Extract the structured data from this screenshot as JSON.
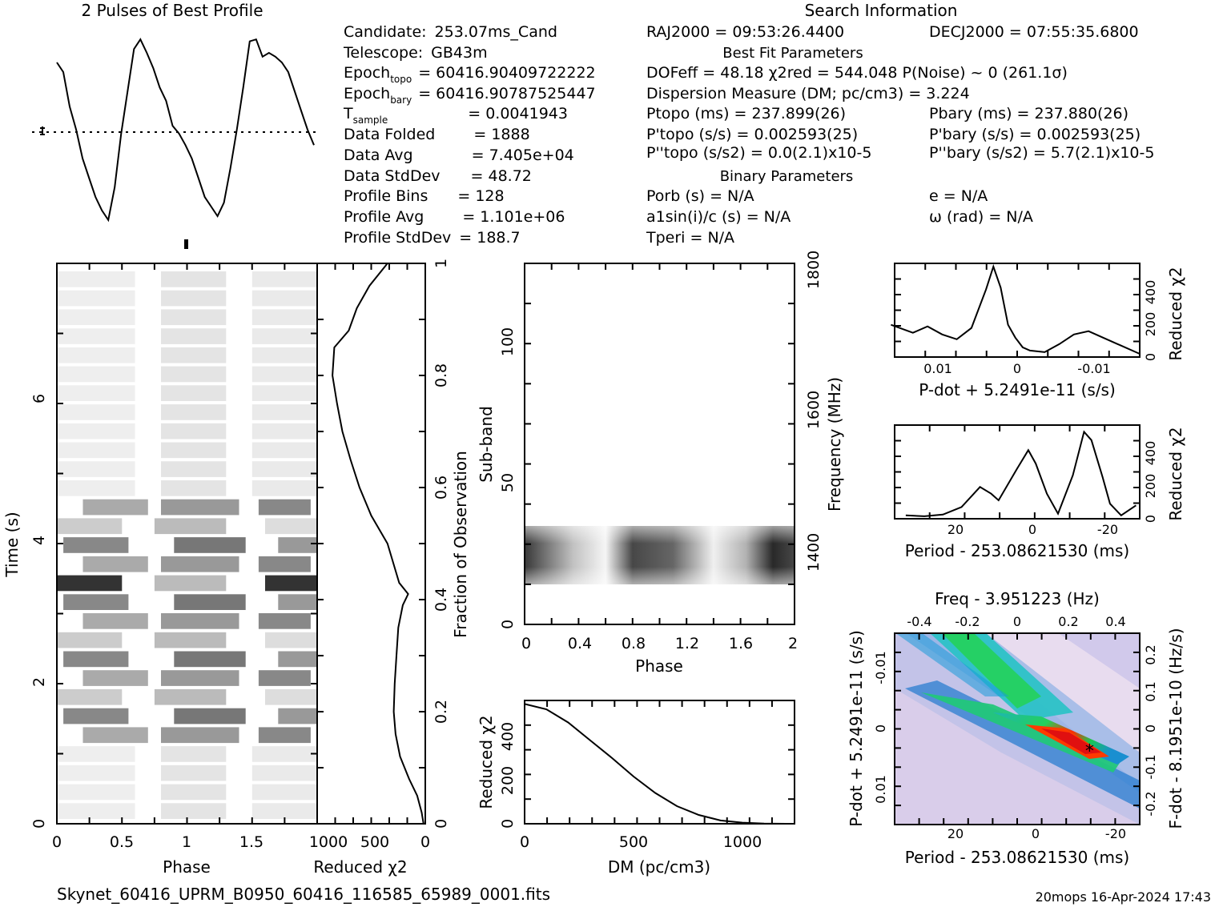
{
  "header": {
    "profile_title": "2 Pulses of Best Profile",
    "search_title": "Search Information",
    "best_fit_title": "Best Fit Parameters",
    "binary_title": "Binary Parameters"
  },
  "info_left": [
    {
      "label": "Candidate:",
      "value": "253.07ms_Cand"
    },
    {
      "label": "Telescope:",
      "value": "GB43m"
    },
    {
      "label": "Epoch",
      "sub": "topo",
      "value": "= 60416.90409722222"
    },
    {
      "label": "Epoch",
      "sub": "bary",
      "value": "= 60416.90787525447"
    },
    {
      "label": "T",
      "sub": "sample",
      "value": "=   0.0041943"
    },
    {
      "label": "Data Folded",
      "value": "=   1888"
    },
    {
      "label": "Data Avg",
      "value": "=   7.405e+04"
    },
    {
      "label": "Data StdDev",
      "value": "=   48.72"
    },
    {
      "label": "Profile Bins",
      "value": "=   128"
    },
    {
      "label": "Profile Avg",
      "value": "=   1.101e+06"
    },
    {
      "label": "Profile StdDev",
      "value": "=   188.7"
    }
  ],
  "search": {
    "ra": "RAJ2000 = 09:53:26.4400",
    "dec": "DECJ2000 = 07:55:35.6800",
    "dof": "DOFeff = 48.18  χ2red = 544.048   P(Noise) ~ 0    (261.1σ)",
    "dm": "Dispersion Measure (DM; pc/cm3) = 3.224",
    "p_topo": "Ptopo (ms) =  237.899(26)",
    "p_bary": "Pbary (ms) =  237.880(26)",
    "pd_topo": "P'topo (s/s) =  0.002593(25)",
    "pd_bary": "P'bary (s/s) =  0.002593(25)",
    "pdd_topo": "P''topo (s/s2) = 0.0(2.1)x10-5",
    "pdd_bary": "P''bary (s/s2) =  5.7(2.1)x10-5",
    "porb": "Porb (s) = N/A",
    "e": "e = N/A",
    "a1": "a1sin(i)/c (s) = N/A",
    "omega": "ω (rad) = N/A",
    "tperi": "Tperi = N/A"
  },
  "footer": {
    "filename": "Skynet_60416_UPRM_B0950_60416_116585_65989_0001.fits",
    "stamp": "20mops 16-Apr-2024 17:43"
  },
  "chart_data": [
    {
      "type": "line",
      "title": "2 Pulses of Best Profile",
      "xlabel": "",
      "ylabel": "",
      "x": [
        0,
        0.05,
        0.1,
        0.15,
        0.2,
        0.25,
        0.3,
        0.35,
        0.4,
        0.45,
        0.5,
        0.55,
        0.6,
        0.65,
        0.7,
        0.75,
        0.8,
        0.85,
        0.9,
        0.95,
        1.0,
        1.05,
        1.1,
        1.15,
        1.2,
        1.25,
        1.3,
        1.35,
        1.4,
        1.45,
        1.5,
        1.55,
        1.6,
        1.65,
        1.7,
        1.75,
        1.8,
        1.85,
        1.9,
        1.95,
        2.0
      ],
      "values": [
        0.85,
        0.8,
        0.62,
        0.5,
        0.35,
        0.25,
        0.15,
        0.08,
        0.03,
        0.2,
        0.48,
        0.7,
        0.92,
        0.97,
        0.9,
        0.82,
        0.72,
        0.65,
        0.52,
        0.48,
        0.42,
        0.35,
        0.25,
        0.15,
        0.1,
        0.05,
        0.12,
        0.3,
        0.5,
        0.72,
        0.96,
        0.97,
        0.88,
        0.9,
        0.88,
        0.85,
        0.8,
        0.7,
        0.6,
        0.5,
        0.42
      ],
      "ylim": [
        0,
        1
      ]
    },
    {
      "type": "heatmap",
      "title": "",
      "xlabel": "Phase",
      "ylabel": "Time (s)",
      "xticks": [
        "0",
        "0.5",
        "1",
        "1.5"
      ],
      "yticks": [
        "0",
        "2",
        "4",
        "6"
      ],
      "xlim": [
        0,
        2
      ],
      "ylim": [
        0,
        7.9
      ]
    },
    {
      "type": "line",
      "title": "",
      "xlabel": "Reduced χ2",
      "ylabel": "Fraction of Observation",
      "xticks": [
        "1000",
        "500",
        "0"
      ],
      "yticks": [
        "0",
        "0.2",
        "0.4",
        "0.6",
        "0.8",
        "1"
      ],
      "y": [
        0,
        0.02,
        0.05,
        0.08,
        0.12,
        0.16,
        0.2,
        0.25,
        0.3,
        0.35,
        0.39,
        0.41,
        0.43,
        0.5,
        0.55,
        0.6,
        0.65,
        0.7,
        0.75,
        0.8,
        0.85,
        0.88,
        0.92,
        0.96,
        1.0
      ],
      "values": [
        20,
        40,
        90,
        180,
        280,
        330,
        350,
        340,
        320,
        300,
        250,
        190,
        290,
        420,
        600,
        730,
        830,
        920,
        980,
        1030,
        1010,
        850,
        760,
        620,
        420
      ],
      "xlim": [
        1200,
        0
      ],
      "ylim": [
        0,
        1
      ]
    },
    {
      "type": "heatmap",
      "title": "",
      "xlabel": "Phase",
      "ylabel": "Sub-band",
      "y2label": "Frequency (MHz)",
      "xticks": [
        "0",
        "0.4",
        "0.8",
        "1.2",
        "1.6",
        "2"
      ],
      "yticks": [
        "0",
        "50",
        "100"
      ],
      "y2ticks": [
        "1400",
        "1600",
        "1800"
      ],
      "xlim": [
        0,
        2
      ],
      "ylim": [
        0,
        128
      ]
    },
    {
      "type": "line",
      "title": "",
      "xlabel": "DM (pc/cm3)",
      "ylabel": "Reduced χ2",
      "xticks": [
        "0",
        "500",
        "1000"
      ],
      "yticks": [
        "0",
        "200",
        "400"
      ],
      "x": [
        0,
        100,
        200,
        300,
        400,
        500,
        600,
        700,
        800,
        900,
        1000,
        1100,
        1200
      ],
      "values": [
        544,
        520,
        460,
        380,
        300,
        215,
        140,
        80,
        40,
        15,
        5,
        1,
        0
      ],
      "xlim": [
        0,
        1240
      ],
      "ylim": [
        0,
        560
      ]
    },
    {
      "type": "line",
      "title": "",
      "xlabel": "P-dot + 5.2491e-11 (s/s)",
      "ylabel": "Reduced χ2",
      "xticks": [
        "0.01",
        "0",
        "-0.01"
      ],
      "yticks": [
        "0",
        "200",
        "400"
      ],
      "x": [
        0.019,
        0.016,
        0.014,
        0.012,
        0.01,
        0.008,
        0.006,
        0.005,
        0.004,
        0.003,
        0.002,
        0.001,
        0,
        -0.002,
        -0.004,
        -0.006,
        -0.008,
        -0.01,
        -0.012,
        -0.015
      ],
      "values": [
        200,
        150,
        190,
        140,
        110,
        180,
        420,
        560,
        430,
        200,
        120,
        60,
        40,
        30,
        80,
        140,
        160,
        120,
        80,
        20
      ],
      "xlim": [
        0.0185,
        -0.015
      ],
      "ylim": [
        0,
        580
      ]
    },
    {
      "type": "line",
      "title": "",
      "xlabel": "Period - 253.08621530 (ms)",
      "ylabel": "Reduced χ2",
      "xticks": [
        "20",
        "0",
        "-20"
      ],
      "yticks": [
        "0",
        "200",
        "400"
      ],
      "x": [
        35,
        30,
        25,
        20,
        15,
        12,
        10,
        5,
        2,
        0,
        -3,
        -6,
        -10,
        -13,
        -15,
        -18,
        -20,
        -23,
        -27
      ],
      "values": [
        20,
        15,
        25,
        70,
        190,
        150,
        110,
        300,
        410,
        330,
        150,
        30,
        260,
        520,
        470,
        250,
        90,
        20,
        80
      ],
      "xlim": [
        38,
        -28
      ],
      "ylim": [
        0,
        560
      ]
    },
    {
      "type": "heatmap",
      "title": "Freq - 3.951223 (Hz)",
      "xlabel": "Period - 253.08621530 (ms)",
      "ylabel": "P-dot + 5.2491e-11 (s/s)",
      "y2label": "F-dot - 8.1951e-10 (Hz/s)",
      "xticks": [
        "20",
        "0",
        "-20"
      ],
      "x2ticks": [
        "-0.4",
        "-0.2",
        "0",
        "0.2",
        "0.4"
      ],
      "yticks": [
        "-0.01",
        "0",
        "0.01"
      ],
      "y2ticks": [
        "0.2",
        "0.1",
        "0",
        "-0.1",
        "-0.2"
      ],
      "best_point_x": -14.5,
      "best_point_y": 0.0028
    }
  ]
}
